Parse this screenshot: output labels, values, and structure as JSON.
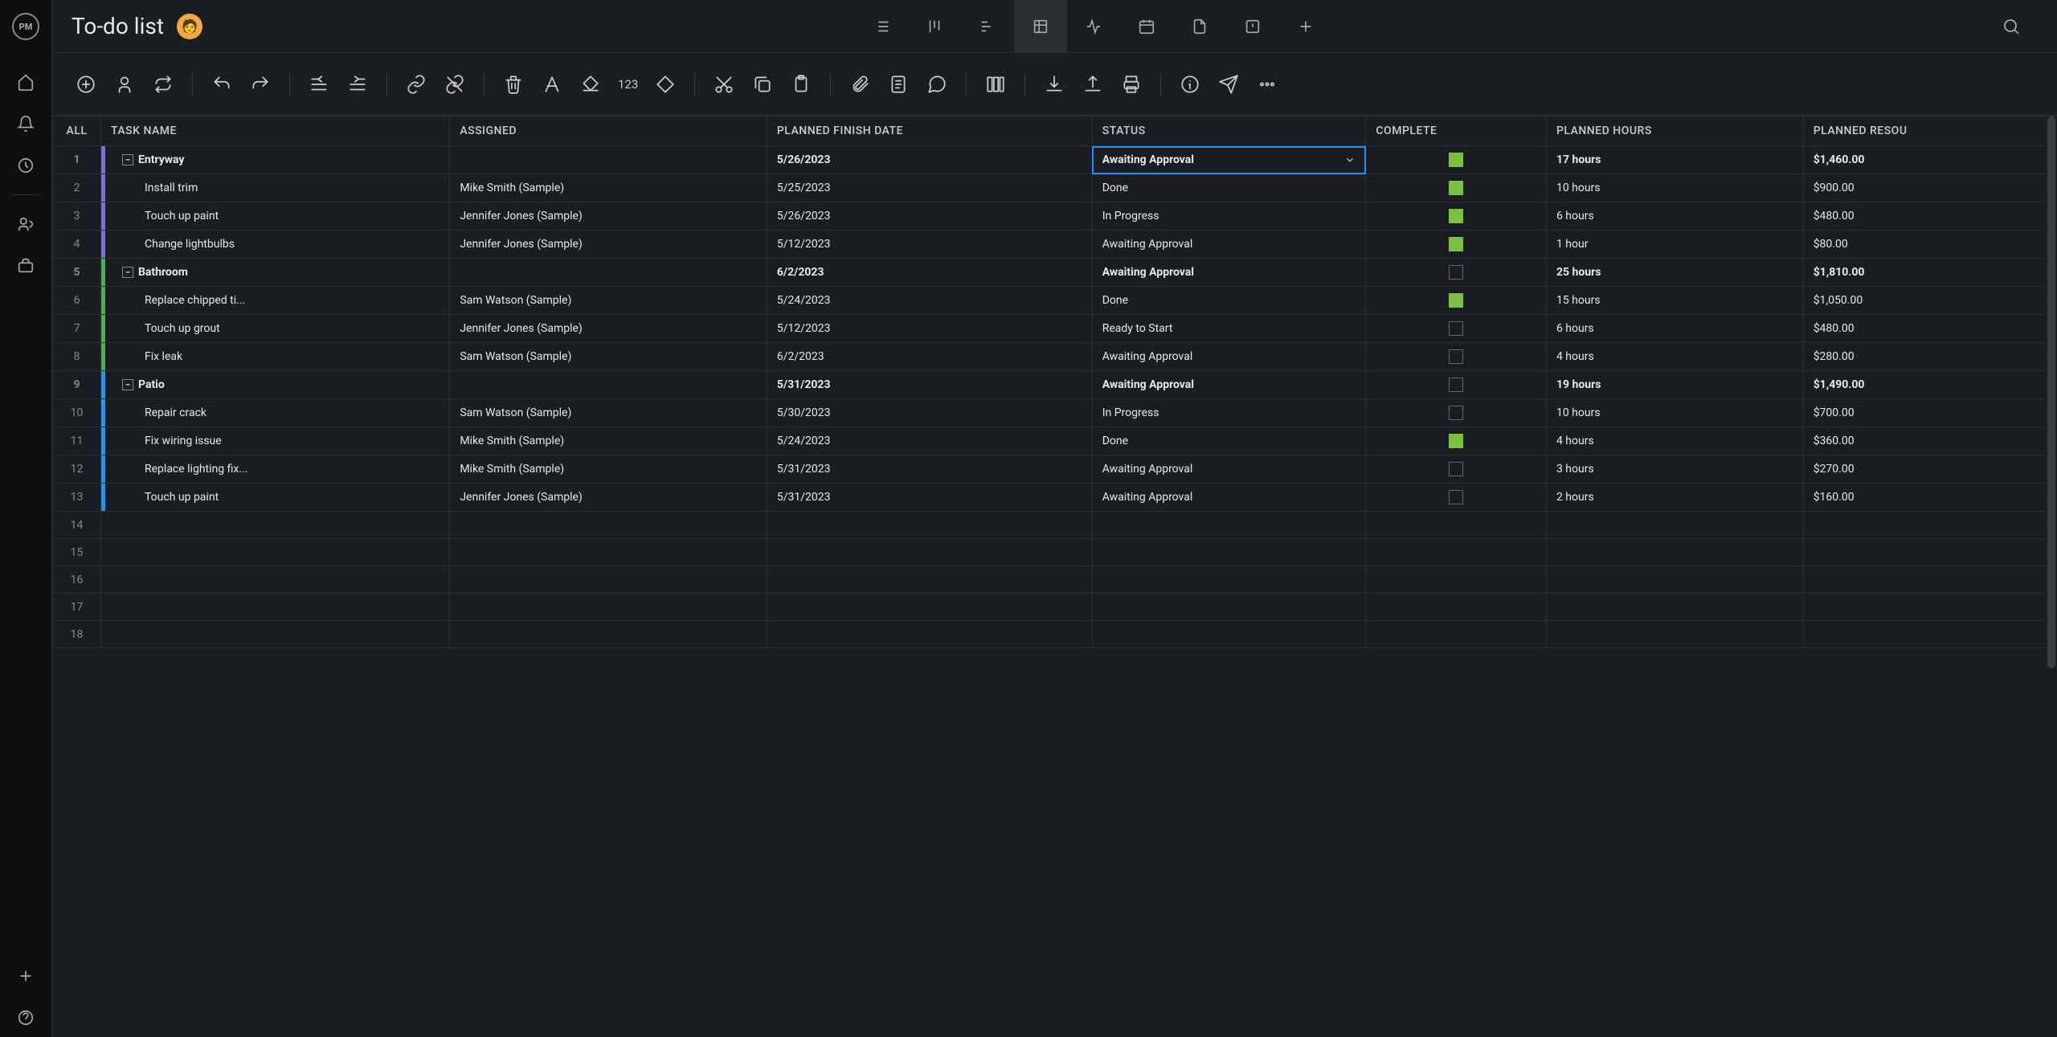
{
  "title": "To-do list",
  "avatar_emoji": "🧑",
  "colors": {
    "entryway": "#7b6fd8",
    "bathroom": "#4caf50",
    "patio": "#2196f3",
    "checkbox_green": "#7ac142",
    "selected_border": "#1e90ff",
    "background": "#1a1d21",
    "border": "#2a2d31"
  },
  "columns": [
    "ALL",
    "TASK NAME",
    "ASSIGNED",
    "PLANNED FINISH DATE",
    "STATUS",
    "COMPLETE",
    "PLANNED HOURS",
    "PLANNED RESOU"
  ],
  "rows": [
    {
      "n": 1,
      "parent": true,
      "group": "entryway",
      "task": "Entryway",
      "assigned": "",
      "finish": "5/26/2023",
      "status": "Awaiting Approval",
      "status_selected": true,
      "complete": true,
      "hours": "17 hours",
      "resource": "$1,460.00",
      "indent": 0
    },
    {
      "n": 2,
      "parent": false,
      "group": "entryway",
      "task": "Install trim",
      "assigned": "Mike Smith (Sample)",
      "finish": "5/25/2023",
      "status": "Done",
      "complete": true,
      "hours": "10 hours",
      "resource": "$900.00",
      "indent": 1
    },
    {
      "n": 3,
      "parent": false,
      "group": "entryway",
      "task": "Touch up paint",
      "assigned": "Jennifer Jones (Sample)",
      "finish": "5/26/2023",
      "status": "In Progress",
      "complete": true,
      "hours": "6 hours",
      "resource": "$480.00",
      "indent": 1
    },
    {
      "n": 4,
      "parent": false,
      "group": "entryway",
      "task": "Change lightbulbs",
      "assigned": "Jennifer Jones (Sample)",
      "finish": "5/12/2023",
      "status": "Awaiting Approval",
      "complete": true,
      "hours": "1 hour",
      "resource": "$80.00",
      "indent": 1
    },
    {
      "n": 5,
      "parent": true,
      "group": "bathroom",
      "task": "Bathroom",
      "assigned": "",
      "finish": "6/2/2023",
      "status": "Awaiting Approval",
      "complete": false,
      "hours": "25 hours",
      "resource": "$1,810.00",
      "indent": 0
    },
    {
      "n": 6,
      "parent": false,
      "group": "bathroom",
      "task": "Replace chipped ti...",
      "assigned": "Sam Watson (Sample)",
      "finish": "5/24/2023",
      "status": "Done",
      "complete": true,
      "hours": "15 hours",
      "resource": "$1,050.00",
      "indent": 1
    },
    {
      "n": 7,
      "parent": false,
      "group": "bathroom",
      "task": "Touch up grout",
      "assigned": "Jennifer Jones (Sample)",
      "finish": "5/12/2023",
      "status": "Ready to Start",
      "complete": false,
      "hours": "6 hours",
      "resource": "$480.00",
      "indent": 1
    },
    {
      "n": 8,
      "parent": false,
      "group": "bathroom",
      "task": "Fix leak",
      "assigned": "Sam Watson (Sample)",
      "finish": "6/2/2023",
      "status": "Awaiting Approval",
      "complete": false,
      "hours": "4 hours",
      "resource": "$280.00",
      "indent": 1
    },
    {
      "n": 9,
      "parent": true,
      "group": "patio",
      "task": "Patio",
      "assigned": "",
      "finish": "5/31/2023",
      "status": "Awaiting Approval",
      "complete": false,
      "hours": "19 hours",
      "resource": "$1,490.00",
      "indent": 0
    },
    {
      "n": 10,
      "parent": false,
      "group": "patio",
      "task": "Repair crack",
      "assigned": "Sam Watson (Sample)",
      "finish": "5/30/2023",
      "status": "In Progress",
      "complete": false,
      "hours": "10 hours",
      "resource": "$700.00",
      "indent": 1
    },
    {
      "n": 11,
      "parent": false,
      "group": "patio",
      "task": "Fix wiring issue",
      "assigned": "Mike Smith (Sample)",
      "finish": "5/24/2023",
      "status": "Done",
      "complete": true,
      "hours": "4 hours",
      "resource": "$360.00",
      "indent": 1
    },
    {
      "n": 12,
      "parent": false,
      "group": "patio",
      "task": "Replace lighting fix...",
      "assigned": "Mike Smith (Sample)",
      "finish": "5/31/2023",
      "status": "Awaiting Approval",
      "complete": false,
      "hours": "3 hours",
      "resource": "$270.00",
      "indent": 1
    },
    {
      "n": 13,
      "parent": false,
      "group": "patio",
      "task": "Touch up paint",
      "assigned": "Jennifer Jones (Sample)",
      "finish": "5/31/2023",
      "status": "Awaiting Approval",
      "complete": false,
      "hours": "2 hours",
      "resource": "$160.00",
      "indent": 1
    }
  ],
  "empty_rows": [
    14,
    15,
    16,
    17,
    18
  ]
}
